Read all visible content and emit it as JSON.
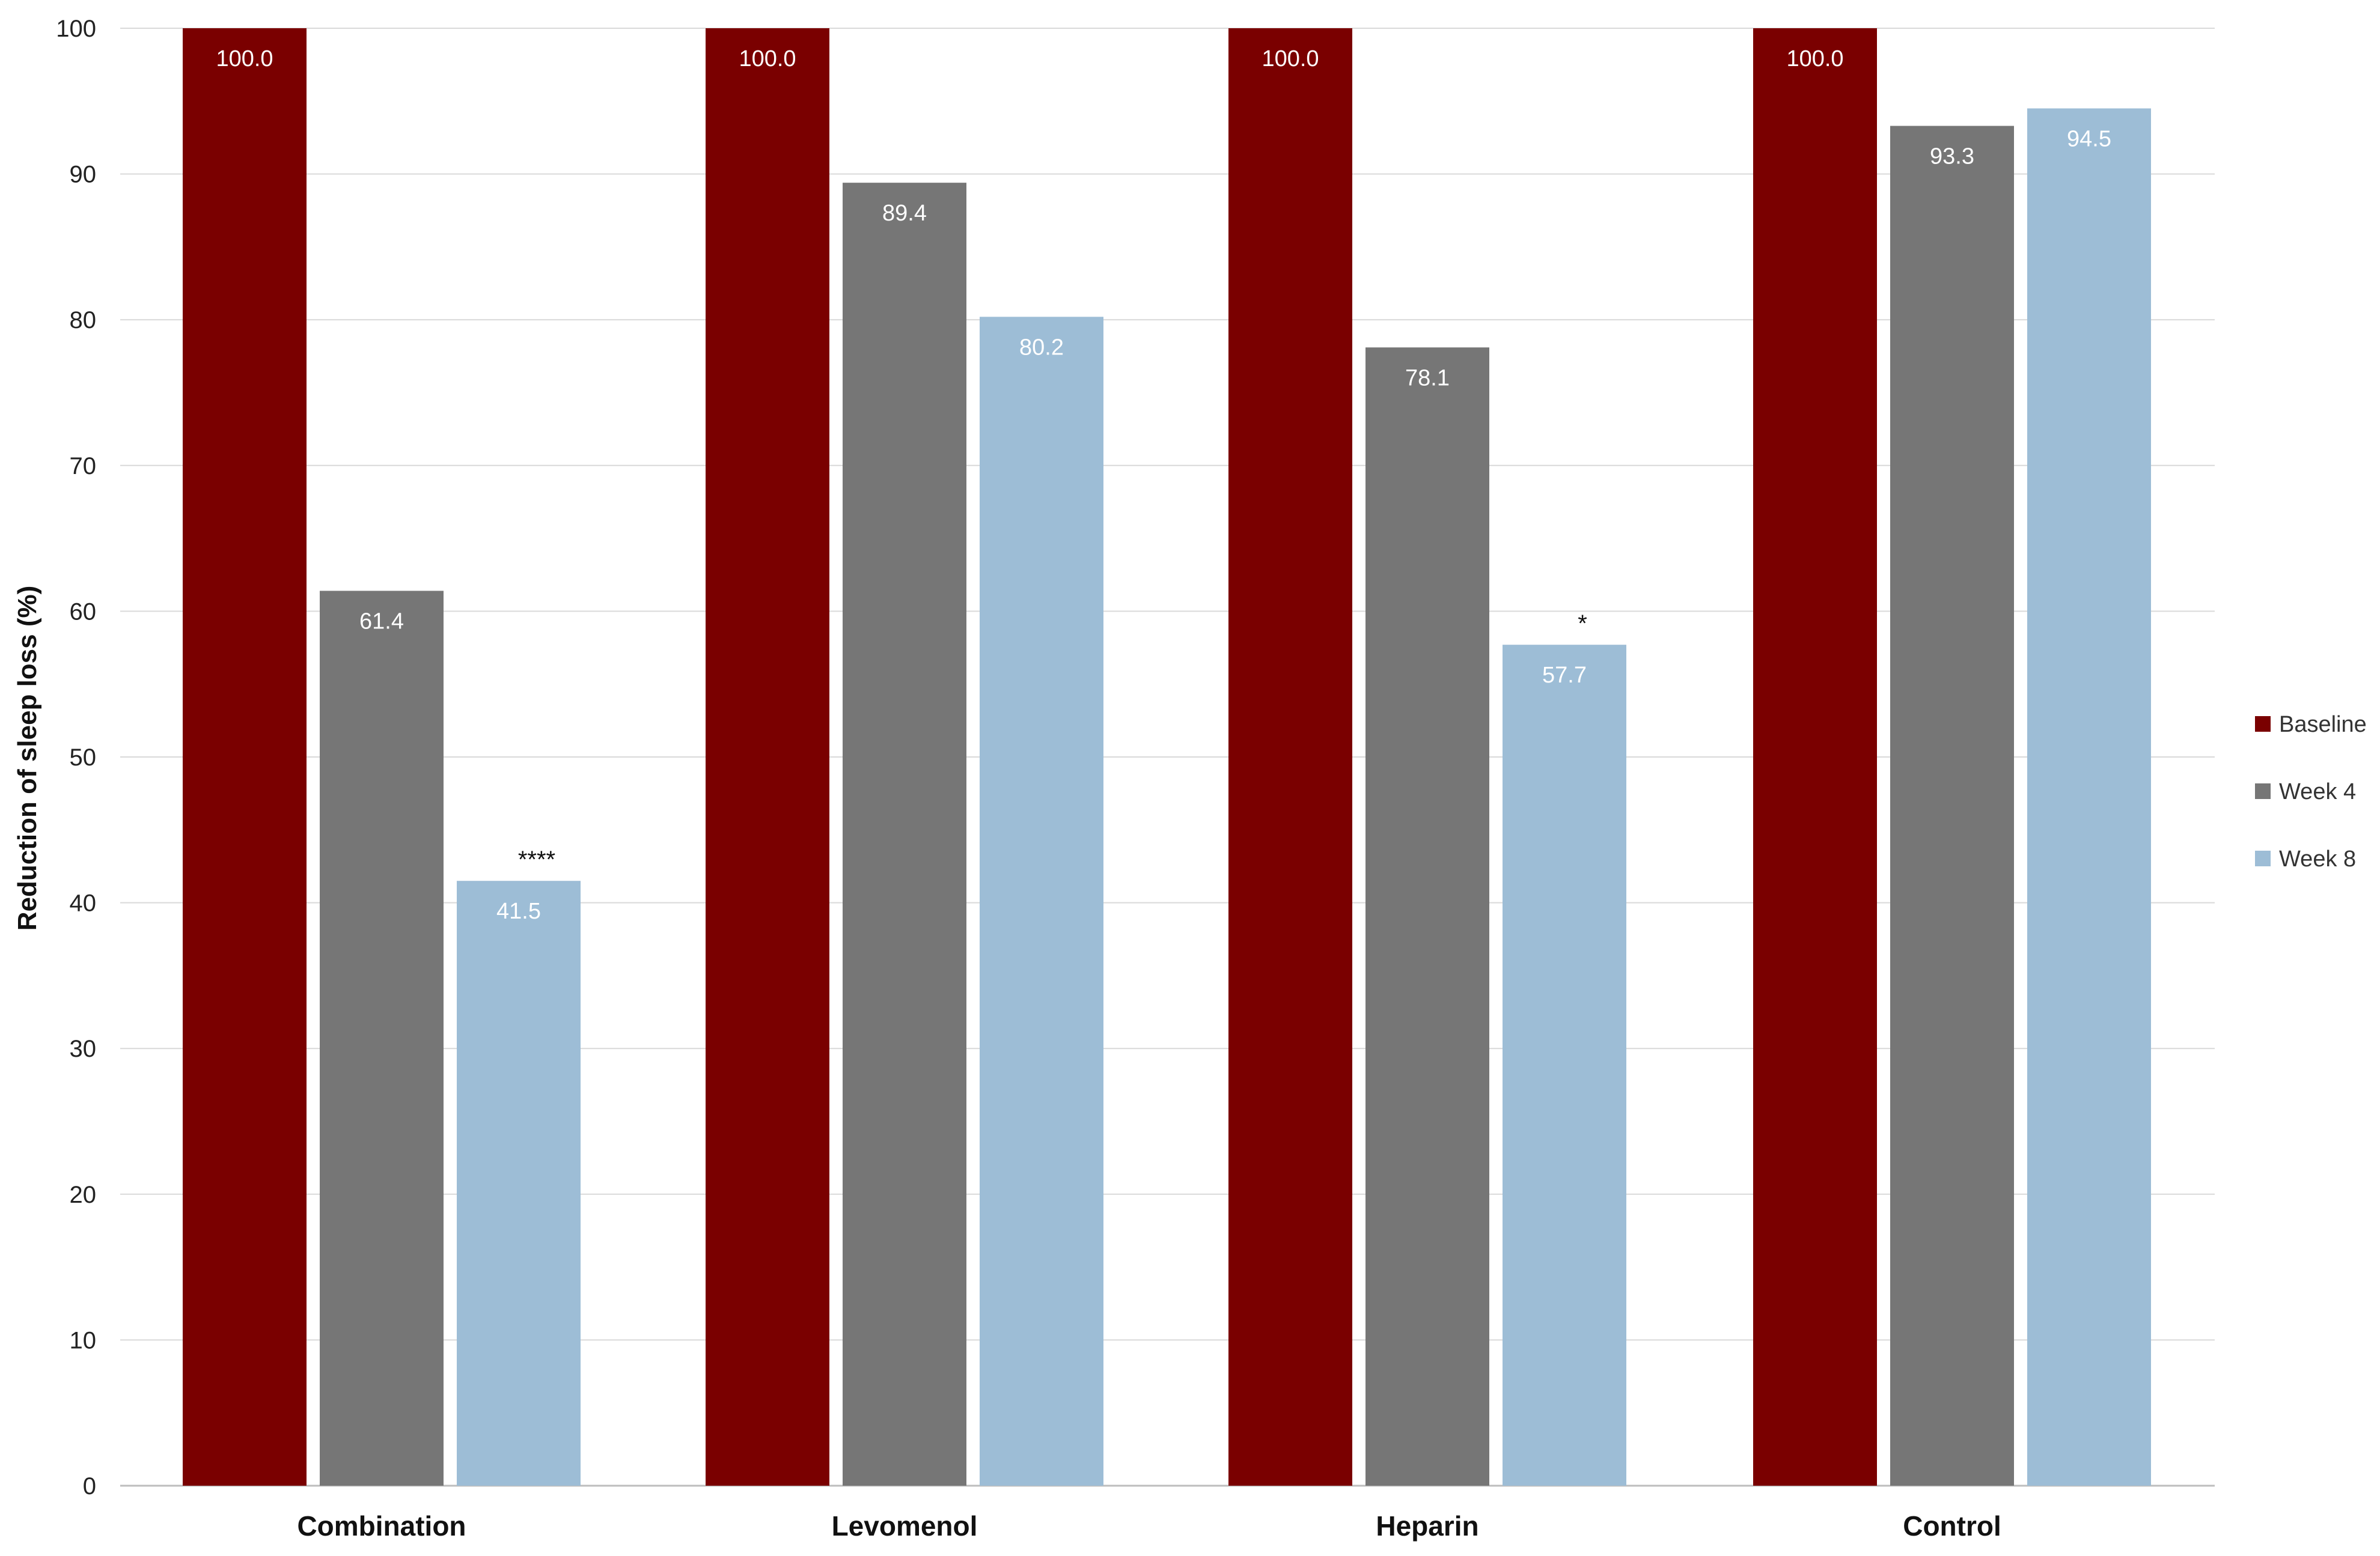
{
  "chart_data": {
    "type": "bar",
    "ylabel": "Reduction of sleep loss (%)",
    "xlabel": "",
    "ylim": [
      0,
      100
    ],
    "yticks": [
      "0",
      "10",
      "20",
      "30",
      "40",
      "50",
      "60",
      "70",
      "80",
      "90",
      "100"
    ],
    "grid": true,
    "legend_position": "right",
    "categories": [
      "Combination",
      "Levomenol",
      "Heparin",
      "Control"
    ],
    "series": [
      {
        "name": "Baseline",
        "color": "#7a0000",
        "values": [
          100.0,
          100.0,
          100.0,
          100.0
        ],
        "labels": [
          "100.0",
          "100.0",
          "100.0",
          "100.0"
        ]
      },
      {
        "name": "Week 4",
        "color": "#767676",
        "values": [
          61.4,
          89.4,
          78.1,
          93.3
        ],
        "labels": [
          "61.4",
          "89.4",
          "78.1",
          "93.3"
        ]
      },
      {
        "name": "Week 8",
        "color": "#9dbdd6",
        "values": [
          41.5,
          80.2,
          57.7,
          94.5
        ],
        "labels": [
          "41.5",
          "80.2",
          "57.7",
          "94.5"
        ]
      }
    ],
    "annotations": [
      {
        "category": "Combination",
        "series": "Week 8",
        "text": "****"
      },
      {
        "category": "Heparin",
        "series": "Week 8",
        "text": "*"
      }
    ]
  }
}
